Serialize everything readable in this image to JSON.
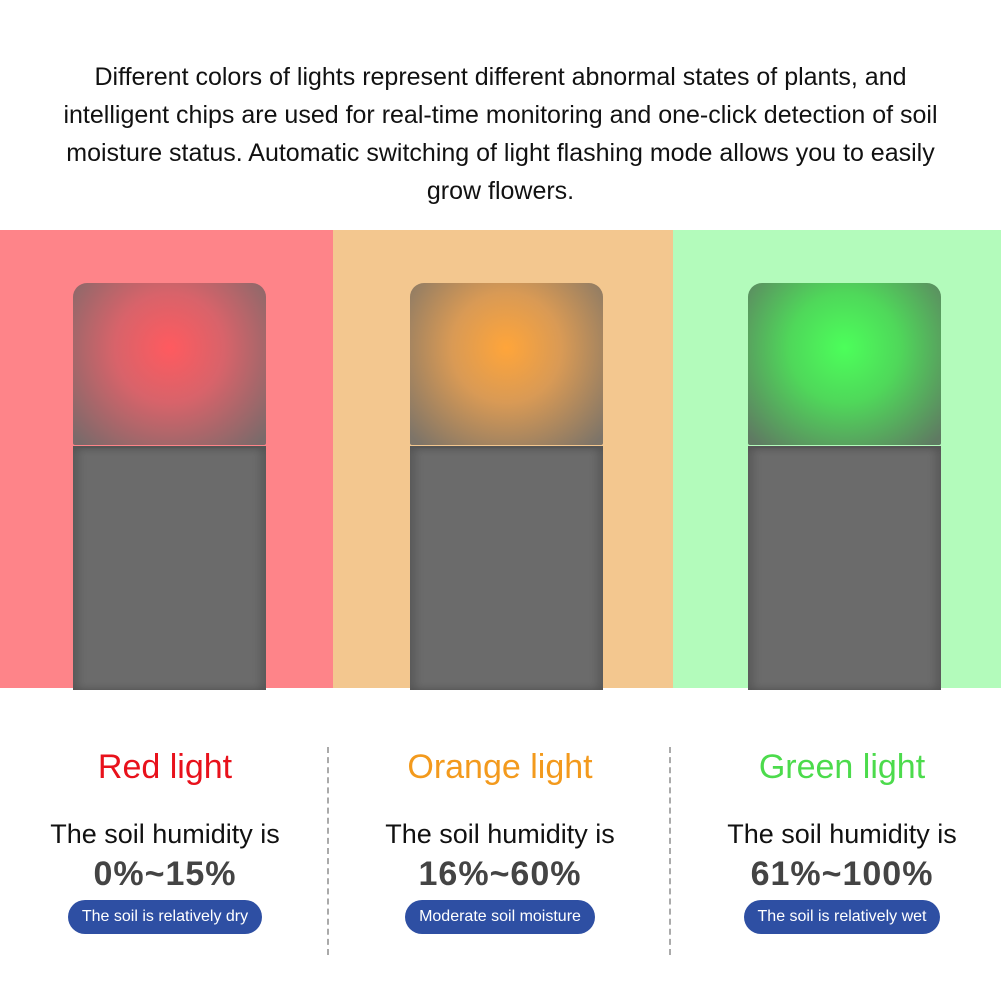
{
  "intro": "Different colors of lights represent different abnormal states of plants, and intelligent chips are used for real-time monitoring and one-click detection of soil moisture status. Automatic switching of light flashing mode allows you to easily grow flowers.",
  "lights": [
    {
      "title": "Red light",
      "subtitle": "The soil humidity is",
      "range": "0%~15%",
      "status": "The soil is relatively dry",
      "text_color": "#e8111b",
      "bg_color": "#fe8489",
      "glow_color": "#ff5a5f"
    },
    {
      "title": "Orange light",
      "subtitle": "The soil humidity is",
      "range": "16%~60%",
      "status": "Moderate soil moisture",
      "text_color": "#f39a1d",
      "bg_color": "#f3c78f",
      "glow_color": "#ffa53a"
    },
    {
      "title": "Green light",
      "subtitle": "The soil humidity is",
      "range": "61%~100%",
      "status": "The soil is relatively wet",
      "text_color": "#4cdb4c",
      "bg_color": "#b3fbbb",
      "glow_color": "#4cff5a"
    }
  ],
  "pill_color": "#2e4fa3"
}
